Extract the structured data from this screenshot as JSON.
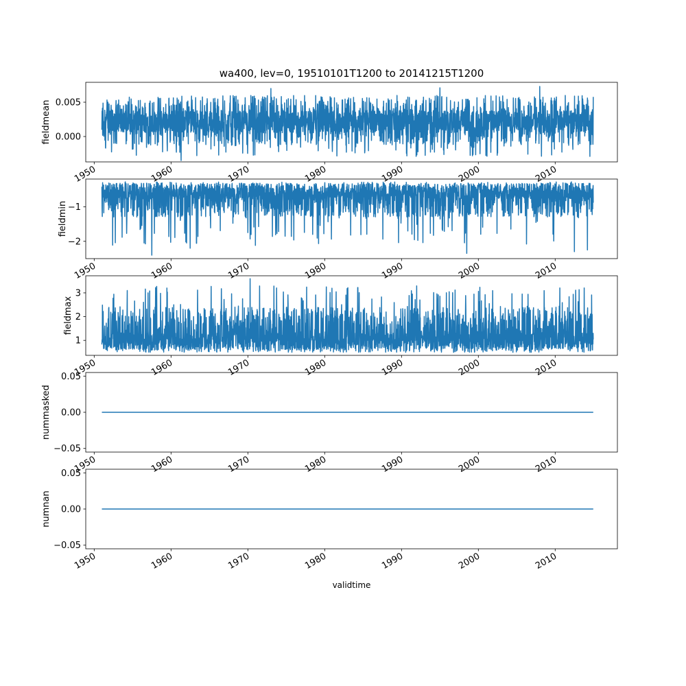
{
  "figure": {
    "title": "wa400, lev=0, 19510101T1200 to 20141215T1200",
    "xlabel": "validtime"
  },
  "style": {
    "line_color": "#1f77b4",
    "axes_color": "#000000",
    "background": "#ffffff"
  },
  "chart_data": [
    {
      "type": "line",
      "ylabel": "fieldmean",
      "xlim": [
        1948.9,
        2018.1
      ],
      "ylim": [
        -0.0037,
        0.0079
      ],
      "yticks": [
        0.0,
        0.005
      ],
      "ytick_labels": [
        "0.000",
        "0.005"
      ],
      "xticks": [
        1950,
        1960,
        1970,
        1980,
        1990,
        2000,
        2010
      ],
      "xtick_labels": [
        "1950",
        "1960",
        "1970",
        "1980",
        "1990",
        "2000",
        "2010"
      ],
      "x_range": [
        1951.0,
        2014.96
      ],
      "series": [
        {
          "kind": "noisy",
          "base": 0.0022,
          "low": -0.0012,
          "high": 0.006,
          "minimum": -0.0035,
          "maximum": 0.0073
        }
      ],
      "extremes": [
        {
          "x": 1961.3,
          "y": -0.0035
        },
        {
          "x": 2008.0,
          "y": 0.0073
        },
        {
          "x": 1973.0,
          "y": 0.007
        },
        {
          "x": 1995.0,
          "y": 0.0071
        }
      ]
    },
    {
      "type": "line",
      "ylabel": "fieldmin",
      "xlim": [
        1948.9,
        2018.1
      ],
      "ylim": [
        -2.5,
        -0.2
      ],
      "yticks": [
        -2,
        -1
      ],
      "ytick_labels": [
        "−2",
        "−1"
      ],
      "xticks": [
        1950,
        1960,
        1970,
        1980,
        1990,
        2000,
        2010
      ],
      "xtick_labels": [
        "1950",
        "1960",
        "1970",
        "1980",
        "1990",
        "2000",
        "2010"
      ],
      "x_range": [
        1951.0,
        2014.96
      ],
      "series": [
        {
          "kind": "noisy",
          "base": -0.55,
          "low": -1.3,
          "high": -0.28,
          "minimum": -2.4,
          "maximum": -0.27
        }
      ],
      "extremes": [
        {
          "x": 1957.5,
          "y": -2.4
        },
        {
          "x": 1998.5,
          "y": -2.35
        },
        {
          "x": 2012.5,
          "y": -2.3
        },
        {
          "x": 2014.2,
          "y": -2.25
        },
        {
          "x": 1962.5,
          "y": -2.2
        },
        {
          "x": 1956.5,
          "y": -2.05
        }
      ]
    },
    {
      "type": "line",
      "ylabel": "fieldmax",
      "xlim": [
        1948.9,
        2018.1
      ],
      "ylim": [
        0.37,
        3.72
      ],
      "yticks": [
        1,
        2,
        3
      ],
      "ytick_labels": [
        "1",
        "2",
        "3"
      ],
      "xticks": [
        1950,
        1960,
        1970,
        1980,
        1990,
        2000,
        2010
      ],
      "xtick_labels": [
        "1950",
        "1960",
        "1970",
        "1980",
        "1990",
        "2000",
        "2010"
      ],
      "x_range": [
        1951.0,
        2014.96
      ],
      "series": [
        {
          "kind": "noisy",
          "base": 0.9,
          "low": 0.6,
          "high": 2.4,
          "minimum": 0.5,
          "maximum": 3.6
        }
      ],
      "extremes": [
        {
          "x": 1970.3,
          "y": 3.6
        },
        {
          "x": 1980.2,
          "y": 3.25
        },
        {
          "x": 1983.0,
          "y": 3.0
        },
        {
          "x": 1957.0,
          "y": 3.0
        },
        {
          "x": 1996.2,
          "y": 3.05
        },
        {
          "x": 1954.3,
          "y": 3.1
        }
      ]
    },
    {
      "type": "line",
      "ylabel": "nummasked",
      "xlim": [
        1948.9,
        2018.1
      ],
      "ylim": [
        -0.055,
        0.055
      ],
      "yticks": [
        -0.05,
        0.0,
        0.05
      ],
      "ytick_labels": [
        "−0.05",
        "0.00",
        "0.05"
      ],
      "xticks": [
        1950,
        1960,
        1970,
        1980,
        1990,
        2000,
        2010
      ],
      "xtick_labels": [
        "1950",
        "1960",
        "1970",
        "1980",
        "1990",
        "2000",
        "2010"
      ],
      "x_range": [
        1951.0,
        2014.96
      ],
      "series": [
        {
          "kind": "constant",
          "value": 0.0
        }
      ]
    },
    {
      "type": "line",
      "ylabel": "numnan",
      "xlim": [
        1948.9,
        2018.1
      ],
      "ylim": [
        -0.055,
        0.055
      ],
      "yticks": [
        -0.05,
        0.0,
        0.05
      ],
      "ytick_labels": [
        "−0.05",
        "0.00",
        "0.05"
      ],
      "xticks": [
        1950,
        1960,
        1970,
        1980,
        1990,
        2000,
        2010
      ],
      "xtick_labels": [
        "1950",
        "1960",
        "1970",
        "1980",
        "1990",
        "2000",
        "2010"
      ],
      "x_range": [
        1951.0,
        2014.96
      ],
      "series": [
        {
          "kind": "constant",
          "value": 0.0
        }
      ]
    }
  ]
}
